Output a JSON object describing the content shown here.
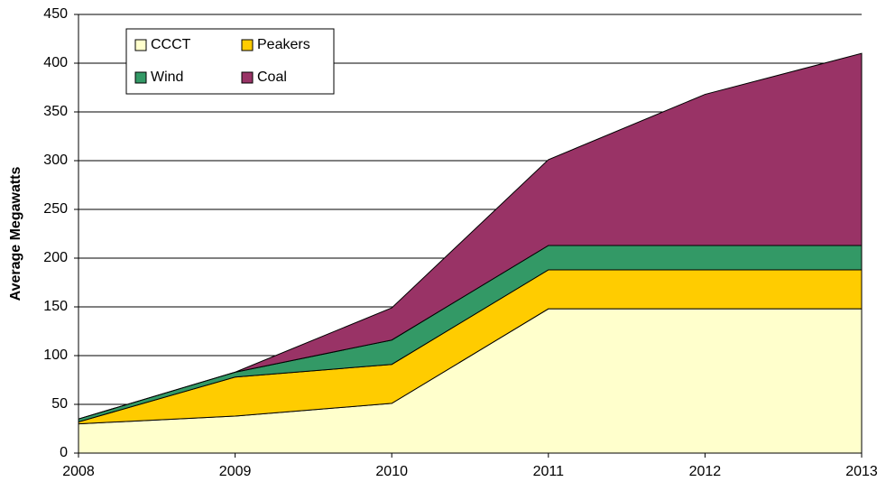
{
  "chart_data": {
    "type": "stacked_area",
    "y_label": "Average Megawatts",
    "categories": [
      "2008",
      "2009",
      "2010",
      "2011",
      "2012",
      "2013"
    ],
    "series": [
      {
        "name": "CCCT",
        "color": "#ffffcc",
        "values": [
          30,
          38,
          51,
          148,
          148,
          148
        ]
      },
      {
        "name": "Peakers",
        "color": "#ffcc00",
        "values": [
          2,
          40,
          40,
          40,
          40,
          40
        ]
      },
      {
        "name": "Wind",
        "color": "#339966",
        "values": [
          3,
          5,
          25,
          25,
          25,
          25
        ]
      },
      {
        "name": "Coal",
        "color": "#993366",
        "values": [
          0,
          0,
          33,
          88,
          155,
          197
        ]
      }
    ],
    "ylim": [
      0,
      450
    ],
    "yticks": [
      0,
      50,
      100,
      150,
      200,
      250,
      300,
      350,
      400,
      450
    ],
    "grid": true,
    "legend": "upper left"
  }
}
